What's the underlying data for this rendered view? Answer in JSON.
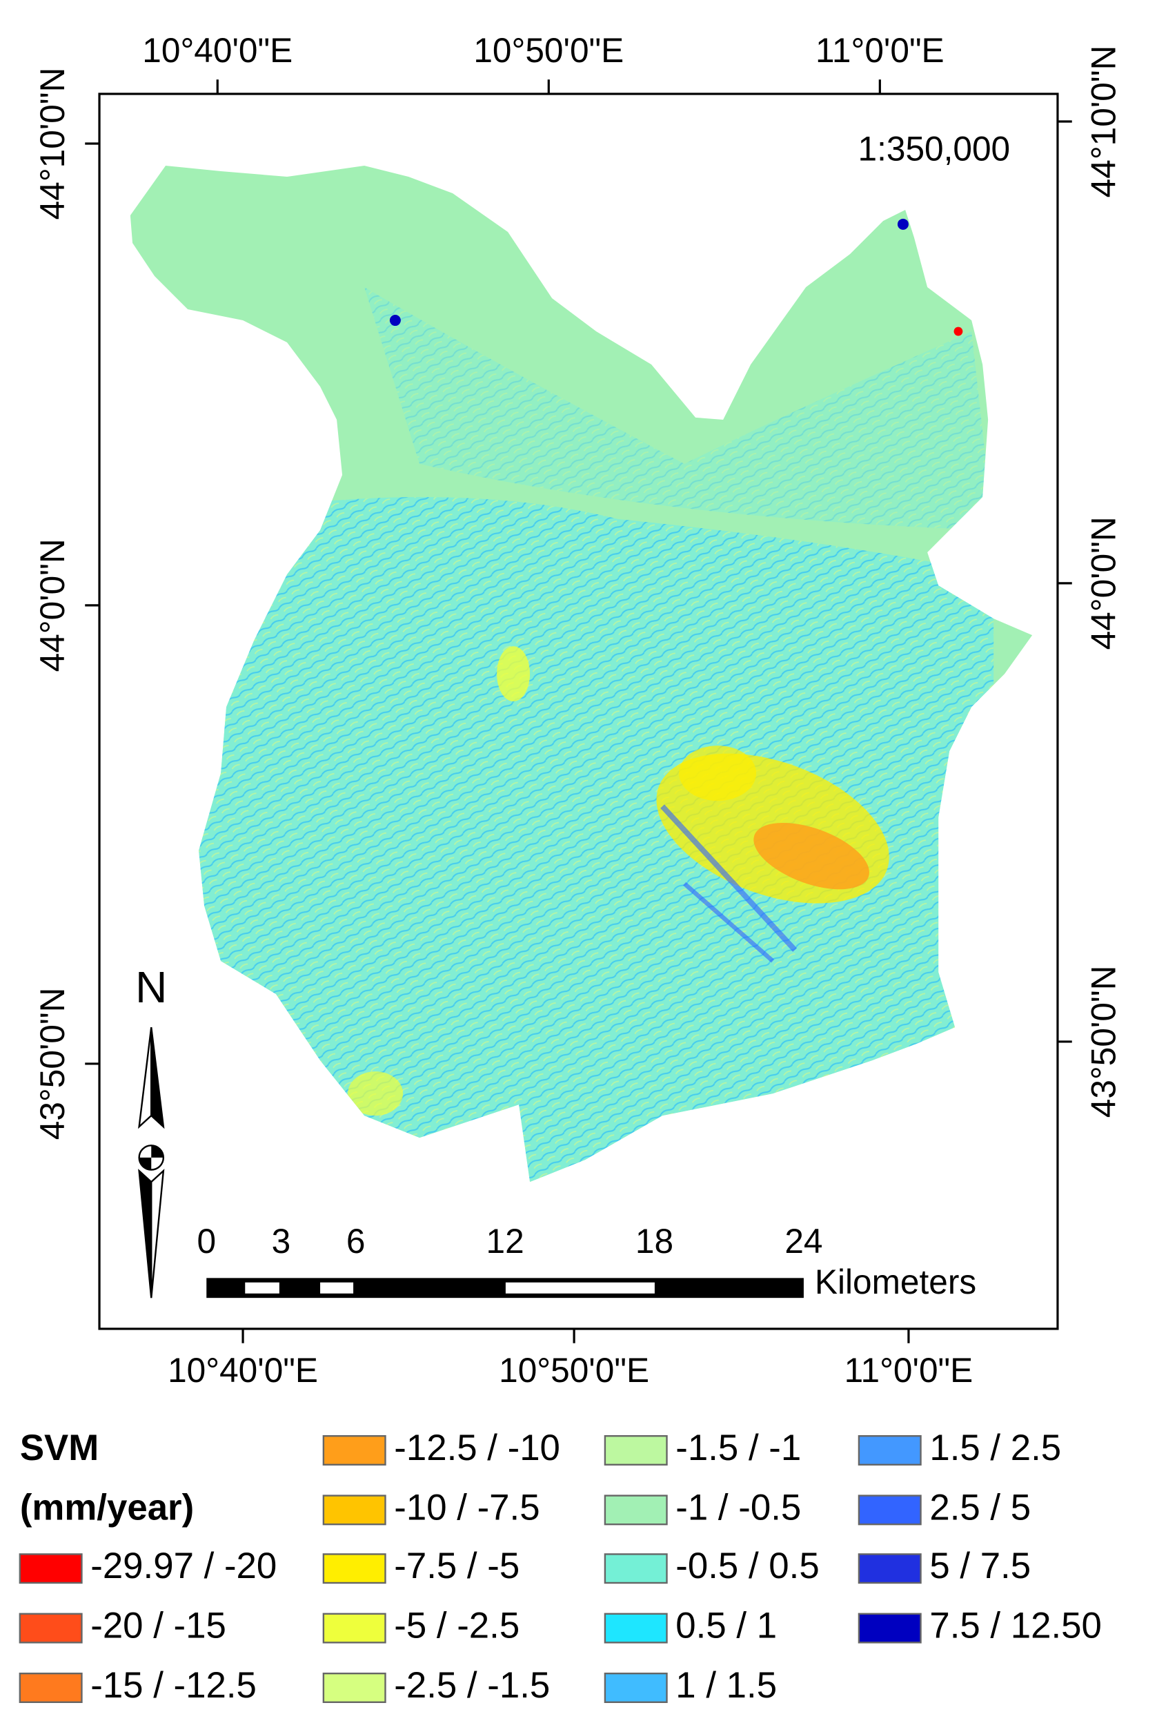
{
  "map": {
    "top_labels": [
      "10°40'0\"E",
      "10°50'0\"E",
      "11°0'0\"E"
    ],
    "bottom_labels": [
      "10°40'0\"E",
      "10°50'0\"E",
      "11°0'0\"E"
    ],
    "left_labels": [
      "44°10'0\"N",
      "44°0'0\"N",
      "43°50'0\"N"
    ],
    "right_labels": [
      "44°10'0\"N",
      "44°0'0\"N",
      "43°50'0\"N"
    ],
    "scale_text": "1:350,000",
    "north": "N",
    "scale_bar": {
      "ticks": [
        0,
        3,
        6,
        12,
        18,
        24
      ],
      "unit": "Kilometers"
    }
  },
  "legend": {
    "title": "SVM",
    "unit": "(mm/year)",
    "items": [
      {
        "label": "-29.97 / -20",
        "color": "#ff0000"
      },
      {
        "label": "-20 / -15",
        "color": "#ff4d1a"
      },
      {
        "label": "-15 / -12.5",
        "color": "#ff7a1e"
      },
      {
        "label": "-12.5 / -10",
        "color": "#ff9e1a"
      },
      {
        "label": "-10 / -7.5",
        "color": "#ffc400"
      },
      {
        "label": "-7.5 / -5",
        "color": "#ffee00"
      },
      {
        "label": "-5 / -2.5",
        "color": "#eeff3c"
      },
      {
        "label": "-2.5 / -1.5",
        "color": "#d6ff80"
      },
      {
        "label": "-1.5 / -1",
        "color": "#bdf8a0"
      },
      {
        "label": "-1 / -0.5",
        "color": "#a2f0b4"
      },
      {
        "label": "-0.5 / 0.5",
        "color": "#74f0d6"
      },
      {
        "label": "0.5 / 1",
        "color": "#1ee6ff"
      },
      {
        "label": "1 / 1.5",
        "color": "#40bcff"
      },
      {
        "label": "1.5 / 2.5",
        "color": "#4398ff"
      },
      {
        "label": "2.5 / 5",
        "color": "#3264ff"
      },
      {
        "label": "5 / 7.5",
        "color": "#2030e0"
      },
      {
        "label": "7.5 / 12.50",
        "color": "#0000c0"
      }
    ]
  }
}
